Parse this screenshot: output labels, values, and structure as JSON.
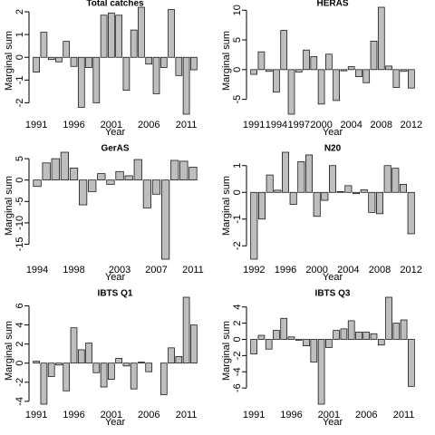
{
  "chart_data": [
    {
      "type": "bar",
      "title": "Total catches",
      "x_label": "Year",
      "y_label": "Marginal sum",
      "color": "#bebebe",
      "categories": [
        "1991",
        null,
        null,
        null,
        null,
        "1996",
        null,
        null,
        null,
        null,
        "2001",
        null,
        null,
        null,
        null,
        "2006",
        null,
        null,
        null,
        null,
        "2011",
        null
      ],
      "values": [
        -0.65,
        1.1,
        -0.1,
        -0.2,
        0.7,
        -0.4,
        -2.2,
        -0.45,
        -2.0,
        1.85,
        1.95,
        1.85,
        -1.45,
        1.2,
        2.2,
        -0.3,
        -1.6,
        -0.45,
        2.1,
        -0.8,
        -2.5,
        -0.55
      ],
      "ylim": [
        -2.5,
        2.2
      ],
      "yticks": [
        -2,
        -1,
        0,
        1,
        2
      ]
    },
    {
      "type": "bar",
      "title": "HERAS",
      "x_label": "Year",
      "y_label": "Marginal sum",
      "color": "#bebebe",
      "categories": [
        "1991",
        null,
        null,
        "1994",
        null,
        null,
        "1997",
        null,
        null,
        "2000",
        null,
        null,
        null,
        "2004",
        null,
        null,
        null,
        "2008",
        null,
        null,
        null,
        "2012"
      ],
      "values": [
        -0.8,
        3.0,
        -0.3,
        -3.8,
        6.6,
        -7.5,
        -0.4,
        3.3,
        2.2,
        -5.8,
        2.6,
        -5.2,
        -0.2,
        0.5,
        -1.2,
        -2.2,
        4.8,
        10.5,
        0.6,
        -3.0,
        -0.3,
        -3.1
      ],
      "ylim": [
        -7.5,
        10.5
      ],
      "yticks": [
        -5,
        0,
        5,
        10
      ]
    },
    {
      "type": "bar",
      "title": "GerAS",
      "x_label": "Year",
      "y_label": "Marginal sum",
      "color": "#bebebe",
      "categories": [
        "1994",
        null,
        null,
        null,
        "1998",
        null,
        null,
        null,
        null,
        "2003",
        null,
        null,
        null,
        "2007",
        null,
        null,
        null,
        "2011"
      ],
      "values": [
        -1.5,
        4.0,
        5.0,
        6.5,
        2.8,
        -5.8,
        -2.7,
        1.5,
        -1.0,
        2.0,
        1.0,
        4.8,
        -6.5,
        -3.3,
        -18.5,
        4.6,
        4.4,
        3.0
      ],
      "ylim": [
        -18.5,
        6.5
      ],
      "yticks": [
        -15,
        -10,
        -5,
        0,
        5
      ]
    },
    {
      "type": "bar",
      "title": "N20",
      "x_label": "Year",
      "y_label": "Marginal sum",
      "color": "#bebebe",
      "categories": [
        "1992",
        null,
        null,
        null,
        "1996",
        null,
        null,
        null,
        "2000",
        null,
        null,
        null,
        "2004",
        null,
        null,
        null,
        "2008",
        null,
        null,
        null,
        "2012"
      ],
      "values": [
        -2.5,
        -1.0,
        0.65,
        0.08,
        1.5,
        -0.45,
        1.15,
        1.4,
        -0.9,
        -0.3,
        1.0,
        0.03,
        0.25,
        -0.05,
        0.1,
        -0.75,
        -0.8,
        1.0,
        0.9,
        0.3,
        -1.55
      ],
      "ylim": [
        -2.5,
        1.5
      ],
      "yticks": [
        -2,
        -1,
        0,
        1
      ]
    },
    {
      "type": "bar",
      "title": "IBTS Q1",
      "x_label": "Year",
      "y_label": "Marginal sum",
      "color": "#bebebe",
      "categories": [
        "1991",
        null,
        null,
        null,
        null,
        "1996",
        null,
        null,
        null,
        null,
        "2001",
        null,
        null,
        null,
        null,
        "2006",
        null,
        null,
        null,
        null,
        "2011",
        null
      ],
      "values": [
        0.2,
        -4.3,
        -1.4,
        -0.2,
        -2.9,
        3.7,
        1.4,
        2.1,
        -1.0,
        -2.5,
        -1.7,
        0.5,
        -0.3,
        -2.7,
        0.1,
        -0.9,
        0.0,
        -3.3,
        1.6,
        0.7,
        6.9,
        4.0
      ],
      "ylim": [
        -4.3,
        6.9
      ],
      "yticks": [
        -4,
        -2,
        0,
        2,
        4,
        6
      ]
    },
    {
      "type": "bar",
      "title": "IBTS Q3",
      "x_label": "Year",
      "y_label": "Marginal sum",
      "color": "#bebebe",
      "categories": [
        "1991",
        null,
        null,
        null,
        null,
        "1996",
        null,
        null,
        null,
        null,
        "2001",
        null,
        null,
        null,
        null,
        "2006",
        null,
        null,
        null,
        null,
        "2011",
        null
      ],
      "values": [
        -1.8,
        0.5,
        -1.2,
        1.1,
        2.6,
        0.3,
        -0.1,
        -0.8,
        -2.8,
        -8.0,
        -1.0,
        1.1,
        1.3,
        2.3,
        0.9,
        0.9,
        0.7,
        -0.7,
        5.2,
        2.0,
        2.4,
        -5.8
      ],
      "ylim": [
        -8.0,
        5.2
      ],
      "yticks": [
        -6,
        -4,
        -2,
        0,
        2,
        4
      ]
    }
  ]
}
